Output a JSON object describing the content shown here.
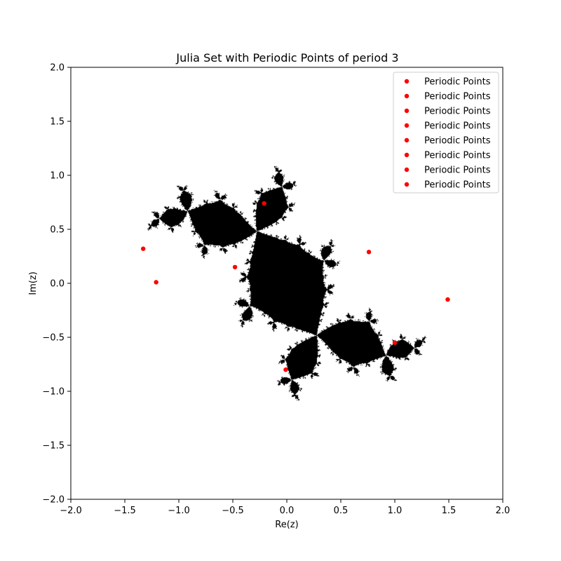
{
  "chart_data": {
    "type": "scatter",
    "title": "Julia Set with Periodic Points of period 3",
    "xlabel": "Re(z)",
    "ylabel": "Im(z)",
    "xlim": [
      -2.0,
      2.0
    ],
    "ylim": [
      -2.0,
      2.0
    ],
    "x_ticks": [
      "−2.0",
      "−1.5",
      "−1.0",
      "−0.5",
      "0.0",
      "0.5",
      "1.0",
      "1.5",
      "2.0"
    ],
    "y_ticks": [
      "−2.0",
      "−1.5",
      "−1.0",
      "−0.5",
      "0.0",
      "0.5",
      "1.0",
      "1.5",
      "2.0"
    ],
    "x_tick_values": [
      -2.0,
      -1.5,
      -1.0,
      -0.5,
      0.0,
      0.5,
      1.0,
      1.5,
      2.0
    ],
    "y_tick_values": [
      -2.0,
      -1.5,
      -1.0,
      -0.5,
      0.0,
      0.5,
      1.0,
      1.5,
      2.0
    ],
    "grid": false,
    "legend_position": "top-right",
    "julia_constant": {
      "re": -0.12,
      "im": 0.75
    },
    "julia_color": "#000000",
    "series": [
      {
        "name": "Periodic Points",
        "color": "#ff0000",
        "points": [
          [
            -1.33,
            0.32
          ],
          [
            1.49,
            -0.15
          ]
        ]
      },
      {
        "name": "Periodic Points",
        "color": "#ff0000",
        "points": [
          [
            -0.21,
            0.74
          ],
          [
            -0.01,
            -0.8
          ]
        ]
      },
      {
        "name": "Periodic Points",
        "color": "#ff0000",
        "points": [
          [
            -1.21,
            0.01
          ]
        ]
      },
      {
        "name": "Periodic Points",
        "color": "#ff0000",
        "points": [
          [
            0.76,
            0.29
          ]
        ]
      },
      {
        "name": "Periodic Points",
        "color": "#ff0000",
        "points": [
          [
            1.0,
            -0.55
          ]
        ]
      },
      {
        "name": "Periodic Points",
        "color": "#ff0000",
        "points": [
          [
            -0.48,
            0.15
          ]
        ]
      },
      {
        "name": "Periodic Points",
        "color": "#ff0000",
        "points": []
      },
      {
        "name": "Periodic Points",
        "color": "#ff0000",
        "points": []
      }
    ]
  }
}
